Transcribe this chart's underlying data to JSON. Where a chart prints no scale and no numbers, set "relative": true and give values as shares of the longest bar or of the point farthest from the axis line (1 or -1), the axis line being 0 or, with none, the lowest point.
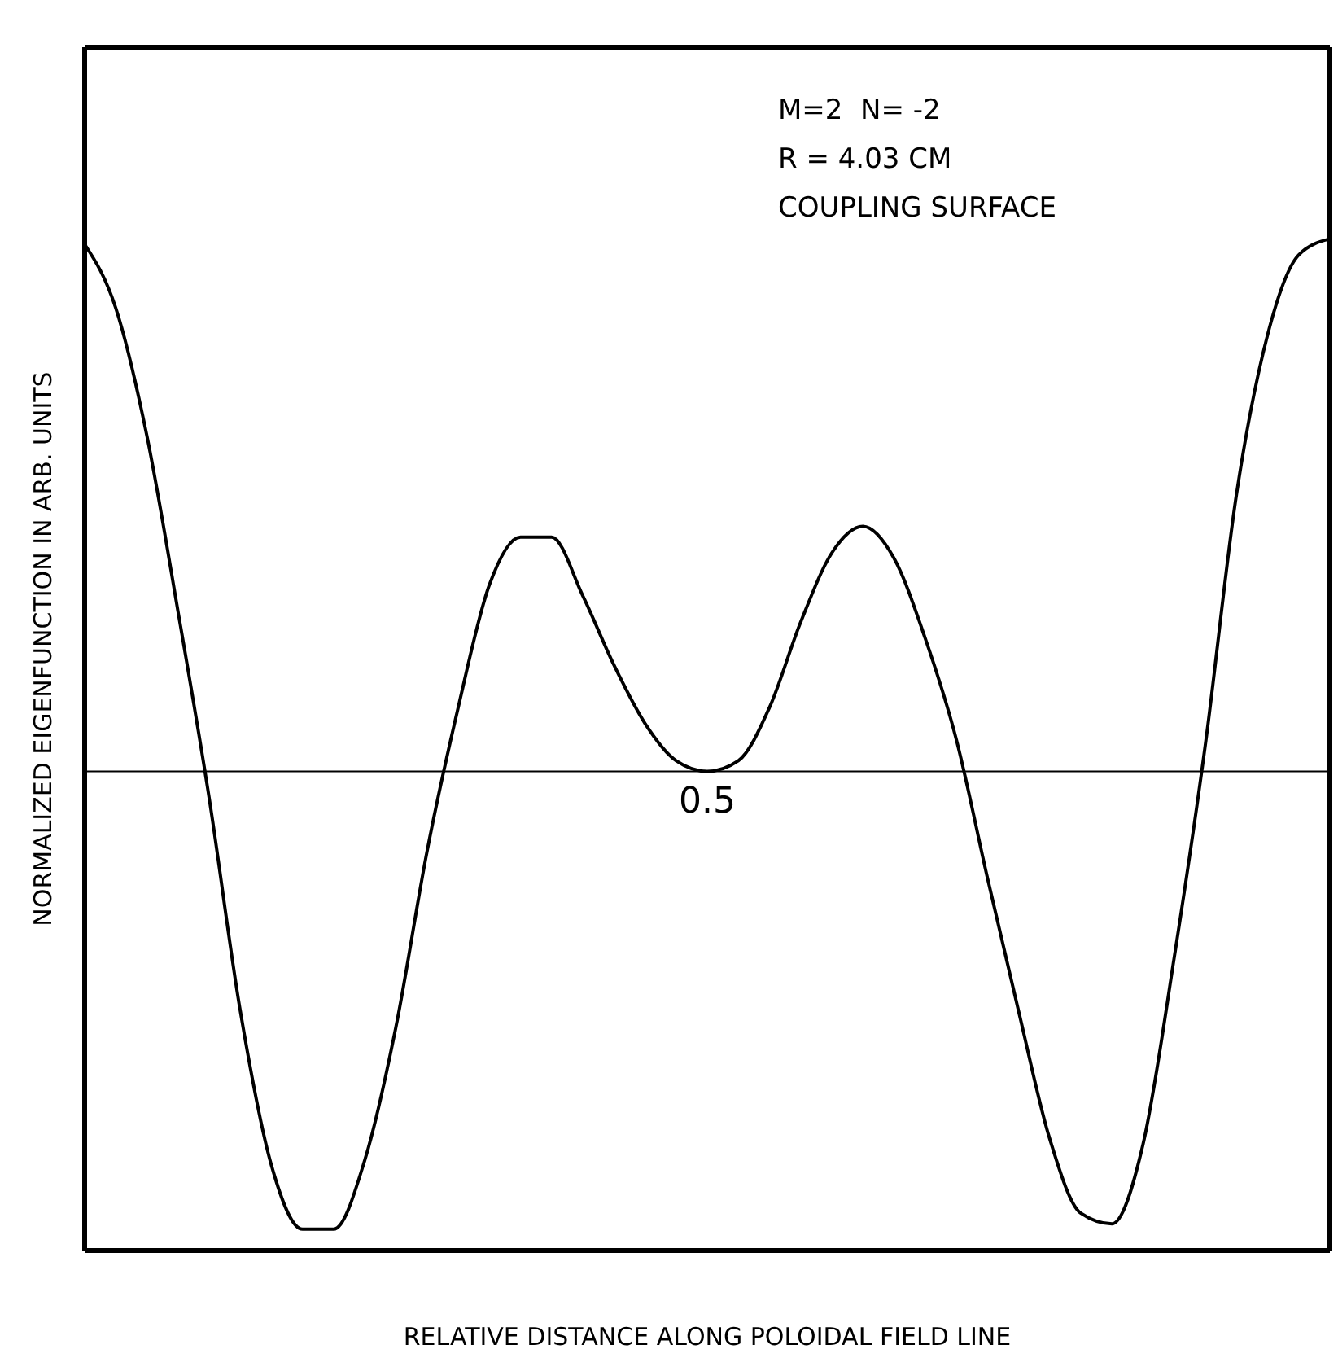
{
  "chart_data": {
    "type": "line",
    "relative": true,
    "xlabel": "RELATIVE DISTANCE ALONG POLOIDAL FIELD LINE",
    "ylabel": "NORMALIZED EIGENFUNCTION IN ARB. UNITS",
    "annotations": [
      "M=2  N= -2",
      "R = 4.03 CM",
      "COUPLING SURFACE",
      "0.5"
    ],
    "categories": [
      null,
      null,
      null,
      null,
      null,
      null,
      null,
      null,
      null,
      null,
      null,
      null,
      null,
      null,
      null,
      null,
      null,
      null,
      null,
      null,
      null,
      null,
      null,
      null,
      null,
      null,
      null,
      null,
      null,
      null,
      null,
      null,
      null,
      null,
      null,
      null,
      null,
      null,
      null,
      null,
      null
    ],
    "series": [
      {
        "color": "#000000",
        "values": [
          0.99,
          0.87,
          0.63,
          0.3,
          -0.05,
          -0.45,
          -0.74,
          -0.86,
          -0.86,
          -0.73,
          -0.48,
          -0.15,
          0.12,
          0.35,
          0.44,
          0.44,
          0.33,
          0.2,
          0.09,
          0.02,
          0,
          0.02,
          0.12,
          0.28,
          0.41,
          0.46,
          0.4,
          0.25,
          0.06,
          -0.2,
          -0.45,
          -0.69,
          -0.83,
          -0.85,
          -0.7,
          -0.35,
          0.05,
          0.52,
          0.82,
          0.97,
          1
        ]
      }
    ]
  }
}
